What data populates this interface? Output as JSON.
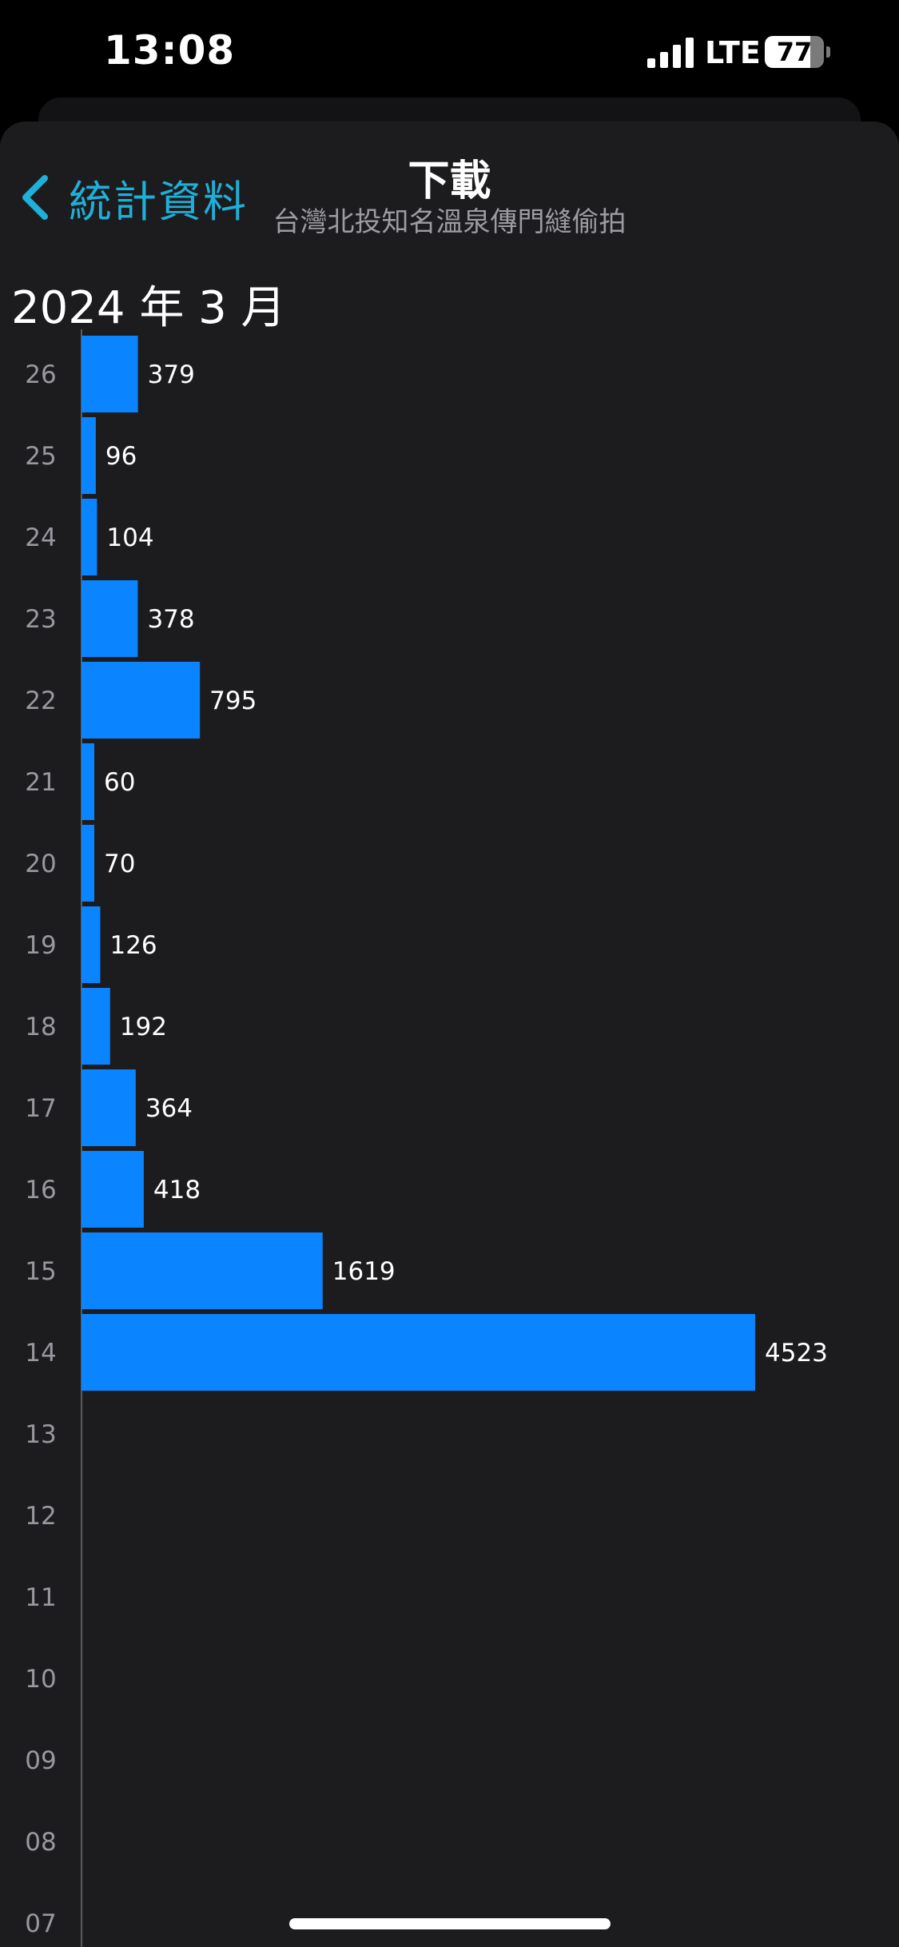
{
  "status_bar": {
    "time": "13:08",
    "network": "LTE",
    "battery_level": "77",
    "battery_fraction": 0.77,
    "signal_icon": "cellular-signal-icon",
    "battery_icon": "battery-icon"
  },
  "nav": {
    "back_label": "統計資料",
    "back_icon": "chevron-left-icon",
    "title": "下載",
    "subtitle": "台灣北投知名溫泉傳門縫偷拍"
  },
  "colors": {
    "accent": "#1eb0d8",
    "bar": "#0a84ff",
    "background": "#1c1c1e"
  },
  "chart_data": {
    "type": "bar",
    "orientation": "horizontal",
    "title": "2024 年 3 月",
    "categories": [
      "26",
      "25",
      "24",
      "23",
      "22",
      "21",
      "20",
      "19",
      "18",
      "17",
      "16",
      "15",
      "14",
      "13",
      "12",
      "11",
      "10",
      "09",
      "08",
      "07"
    ],
    "values": [
      379,
      96,
      104,
      378,
      795,
      60,
      70,
      126,
      192,
      364,
      418,
      1619,
      4523,
      null,
      null,
      null,
      null,
      null,
      null,
      null
    ],
    "xlim": [
      0,
      4523
    ]
  }
}
